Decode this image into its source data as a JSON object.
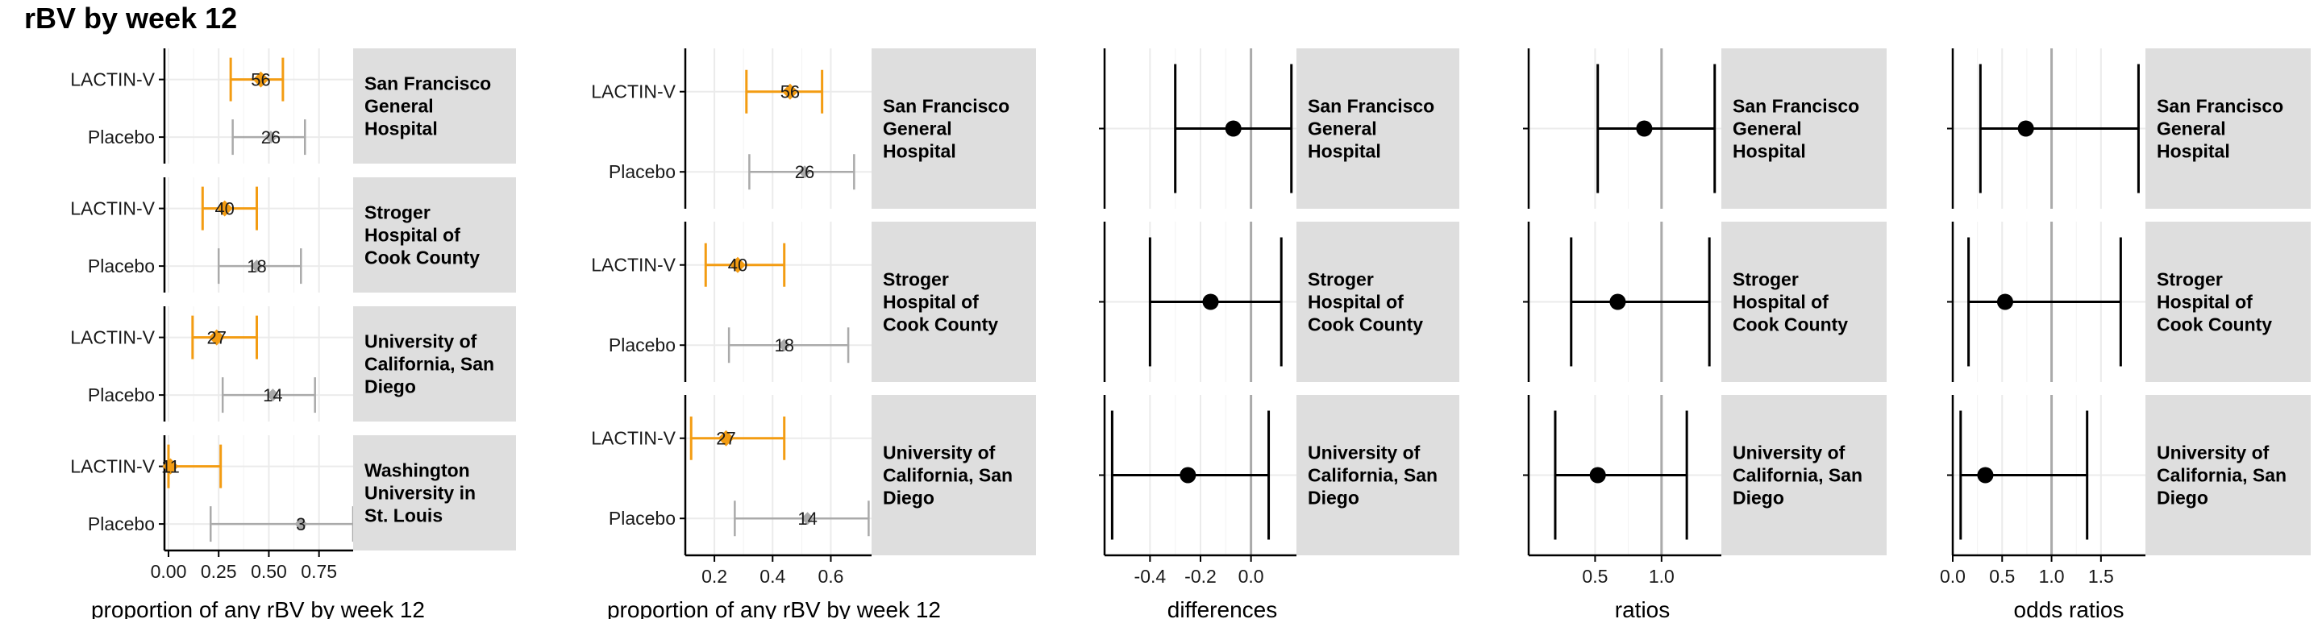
{
  "figure_title": "rBV by week 12",
  "colors": {
    "treatment": "#F39C12",
    "placebo": "#AAAAAA",
    "estimate": "#000000",
    "strip_bg": "#DEDEDE",
    "grid": "#EBEBEB",
    "reference": "#AAAAAA"
  },
  "chart_data": [
    {
      "type": "forest-proportions",
      "xlabel": "proportion of any rBV by week 12",
      "xlim": [
        -0.02,
        0.92
      ],
      "x_ticks": [
        0,
        0.25,
        0.5,
        0.75
      ],
      "x_tick_labels": [
        "0.00",
        "0.25",
        "0.50",
        "0.75"
      ],
      "row_labels": [
        "LACTIN-V",
        "Placebo"
      ],
      "panels": [
        {
          "site": "San Francisco General Hospital",
          "strip_lines": [
            "San Francisco",
            "General",
            "Hospital"
          ],
          "rows": [
            {
              "arm": "LACTIN-V",
              "est": 0.46,
              "lo": 0.31,
              "hi": 0.57,
              "n": "56"
            },
            {
              "arm": "Placebo",
              "est": 0.51,
              "lo": 0.32,
              "hi": 0.68,
              "n": "26"
            }
          ]
        },
        {
          "site": "Stroger Hospital of Cook County",
          "strip_lines": [
            "Stroger",
            "Hospital of",
            "Cook County"
          ],
          "rows": [
            {
              "arm": "LACTIN-V",
              "est": 0.28,
              "lo": 0.17,
              "hi": 0.44,
              "n": "40"
            },
            {
              "arm": "Placebo",
              "est": 0.44,
              "lo": 0.25,
              "hi": 0.66,
              "n": "18"
            }
          ]
        },
        {
          "site": "University of California, San Diego",
          "strip_lines": [
            "University of",
            "California, San",
            "Diego"
          ],
          "rows": [
            {
              "arm": "LACTIN-V",
              "est": 0.24,
              "lo": 0.12,
              "hi": 0.44,
              "n": "27"
            },
            {
              "arm": "Placebo",
              "est": 0.52,
              "lo": 0.27,
              "hi": 0.73,
              "n": "14"
            }
          ]
        },
        {
          "site": "Washington University in St. Louis",
          "strip_lines": [
            "Washington",
            "University in",
            "St. Louis"
          ],
          "rows": [
            {
              "arm": "LACTIN-V",
              "est": 0.01,
              "lo": 0.0,
              "hi": 0.26,
              "n": "11"
            },
            {
              "arm": "Placebo",
              "est": 0.66,
              "lo": 0.21,
              "hi": 0.92,
              "n": "3"
            }
          ]
        }
      ]
    },
    {
      "type": "forest-proportions",
      "xlabel": "proportion of any rBV by week 12",
      "xlim": [
        0.1,
        0.74
      ],
      "x_ticks": [
        0.2,
        0.4,
        0.6
      ],
      "x_tick_labels": [
        "0.2",
        "0.4",
        "0.6"
      ],
      "row_labels": [
        "LACTIN-V",
        "Placebo"
      ],
      "panels": [
        {
          "site": "San Francisco General Hospital",
          "strip_lines": [
            "San Francisco",
            "General",
            "Hospital"
          ],
          "rows": [
            {
              "arm": "LACTIN-V",
              "est": 0.46,
              "lo": 0.31,
              "hi": 0.57,
              "n": "56"
            },
            {
              "arm": "Placebo",
              "est": 0.51,
              "lo": 0.32,
              "hi": 0.68,
              "n": "26"
            }
          ]
        },
        {
          "site": "Stroger Hospital of Cook County",
          "strip_lines": [
            "Stroger",
            "Hospital of",
            "Cook County"
          ],
          "rows": [
            {
              "arm": "LACTIN-V",
              "est": 0.28,
              "lo": 0.17,
              "hi": 0.44,
              "n": "40"
            },
            {
              "arm": "Placebo",
              "est": 0.44,
              "lo": 0.25,
              "hi": 0.66,
              "n": "18"
            }
          ]
        },
        {
          "site": "University of California, San Diego",
          "strip_lines": [
            "University of",
            "California, San",
            "Diego"
          ],
          "rows": [
            {
              "arm": "LACTIN-V",
              "est": 0.24,
              "lo": 0.12,
              "hi": 0.44,
              "n": "27"
            },
            {
              "arm": "Placebo",
              "est": 0.52,
              "lo": 0.27,
              "hi": 0.73,
              "n": "14"
            }
          ]
        }
      ]
    },
    {
      "type": "forest-contrast",
      "xlabel": "differences",
      "xlim": [
        -0.58,
        0.18
      ],
      "reference": 0,
      "x_ticks": [
        -0.4,
        -0.2,
        0.0
      ],
      "x_tick_labels": [
        "-0.4",
        "-0.2",
        "0.0"
      ],
      "panels": [
        {
          "site": "San Francisco General Hospital",
          "strip_lines": [
            "San Francisco",
            "General",
            "Hospital"
          ],
          "est": -0.07,
          "lo": -0.3,
          "hi": 0.16
        },
        {
          "site": "Stroger Hospital of Cook County",
          "strip_lines": [
            "Stroger",
            "Hospital of",
            "Cook County"
          ],
          "est": -0.16,
          "lo": -0.4,
          "hi": 0.12
        },
        {
          "site": "University of California, San Diego",
          "strip_lines": [
            "University of",
            "California, San",
            "Diego"
          ],
          "est": -0.25,
          "lo": -0.55,
          "hi": 0.07
        }
      ]
    },
    {
      "type": "forest-contrast",
      "xlabel": "ratios",
      "xlim": [
        0.0,
        1.45
      ],
      "reference": 1,
      "x_ticks": [
        0.5,
        1.0
      ],
      "x_tick_labels": [
        "0.5",
        "1.0"
      ],
      "panels": [
        {
          "site": "San Francisco General Hospital",
          "strip_lines": [
            "San Francisco",
            "General",
            "Hospital"
          ],
          "est": 0.87,
          "lo": 0.52,
          "hi": 1.4
        },
        {
          "site": "Stroger Hospital of Cook County",
          "strip_lines": [
            "Stroger",
            "Hospital of",
            "Cook County"
          ],
          "est": 0.67,
          "lo": 0.32,
          "hi": 1.36
        },
        {
          "site": "University of California, San Diego",
          "strip_lines": [
            "University of",
            "California, San",
            "Diego"
          ],
          "est": 0.52,
          "lo": 0.2,
          "hi": 1.19
        }
      ]
    },
    {
      "type": "forest-contrast",
      "xlabel": "odds ratios",
      "xlim": [
        0.0,
        1.95
      ],
      "reference": 1,
      "x_ticks": [
        0.0,
        0.5,
        1.0,
        1.5
      ],
      "x_tick_labels": [
        "0.0",
        "0.5",
        "1.0",
        "1.5"
      ],
      "panels": [
        {
          "site": "San Francisco General Hospital",
          "strip_lines": [
            "San Francisco",
            "General",
            "Hospital"
          ],
          "est": 0.74,
          "lo": 0.28,
          "hi": 1.88
        },
        {
          "site": "Stroger Hospital of Cook County",
          "strip_lines": [
            "Stroger",
            "Hospital of",
            "Cook County"
          ],
          "est": 0.53,
          "lo": 0.16,
          "hi": 1.7
        },
        {
          "site": "University of California, San Diego",
          "strip_lines": [
            "University of",
            "California, San",
            "Diego"
          ],
          "est": 0.33,
          "lo": 0.08,
          "hi": 1.36
        }
      ]
    }
  ]
}
